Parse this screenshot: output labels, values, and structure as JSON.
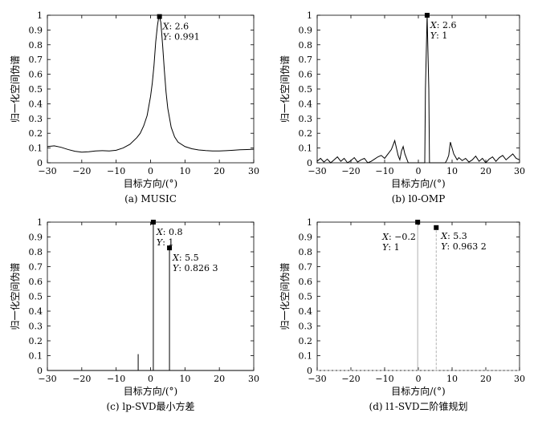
{
  "colors": {
    "line": "#000000",
    "dashed": "#b0b0b0",
    "background": "#ffffff"
  },
  "chart_data": [
    {
      "type": "line",
      "caption": "(a) MUSIC",
      "xlabel": "目标方向/(°)",
      "ylabel": "归一化空间伪谱",
      "xlim": [
        -30,
        30
      ],
      "ylim": [
        0,
        1
      ],
      "xticks": [
        -30,
        -20,
        -10,
        0,
        10,
        20,
        30
      ],
      "yticks": [
        0,
        0.1,
        0.2,
        0.3,
        0.4,
        0.5,
        0.6,
        0.7,
        0.8,
        0.9,
        1
      ],
      "series": [
        {
          "style": "solid",
          "x": [
            -30,
            -28,
            -26,
            -24,
            -22,
            -20,
            -18,
            -16,
            -14,
            -12,
            -10,
            -8,
            -6,
            -4,
            -3,
            -2,
            -1,
            0,
            0.5,
            1,
            1.5,
            2,
            2.3,
            2.6,
            3,
            3.5,
            4,
            4.5,
            5,
            6,
            7,
            8,
            10,
            12,
            14,
            16,
            18,
            20,
            22,
            24,
            26,
            28,
            30
          ],
          "y": [
            0.11,
            0.115,
            0.105,
            0.09,
            0.078,
            0.072,
            0.075,
            0.08,
            0.082,
            0.08,
            0.085,
            0.1,
            0.125,
            0.17,
            0.2,
            0.25,
            0.32,
            0.45,
            0.54,
            0.66,
            0.82,
            0.93,
            0.975,
            0.991,
            0.95,
            0.8,
            0.63,
            0.48,
            0.37,
            0.24,
            0.175,
            0.14,
            0.11,
            0.095,
            0.087,
            0.083,
            0.08,
            0.08,
            0.082,
            0.085,
            0.088,
            0.09,
            0.092
          ]
        }
      ],
      "markers": [
        {
          "x": 2.6,
          "y": 0.991,
          "label_x": "2.6",
          "label_y": "0.991"
        }
      ]
    },
    {
      "type": "line",
      "caption": "(b) l0-OMP",
      "xlabel": "目标方向/(°)",
      "ylabel": "归一化空间伪谱",
      "xlim": [
        -30,
        30
      ],
      "ylim": [
        0,
        1
      ],
      "xticks": [
        -30,
        -20,
        -10,
        0,
        10,
        20,
        30
      ],
      "yticks": [
        0,
        0.1,
        0.2,
        0.3,
        0.4,
        0.5,
        0.6,
        0.7,
        0.8,
        0.9,
        1
      ],
      "series": [
        {
          "style": "solid",
          "x": [
            -30,
            -29,
            -28,
            -27,
            -26,
            -25,
            -24,
            -23,
            -22,
            -21,
            -20,
            -19,
            -18,
            -17,
            -16,
            -15,
            -14,
            -13,
            -12,
            -11,
            -10,
            -9,
            -8,
            -7.5,
            -7,
            -6.5,
            -6,
            -5.5,
            -5,
            -4.5,
            -4,
            -3,
            -2,
            -1,
            0,
            1,
            1.5,
            1.9,
            2.1,
            2.6,
            3.1,
            3.3,
            3.7,
            4,
            5,
            6,
            7,
            8,
            8.5,
            9,
            9.5,
            10,
            10.5,
            11,
            11.5,
            12,
            13,
            14,
            15,
            16,
            17,
            18,
            19,
            20,
            21,
            22,
            23,
            24,
            25,
            26,
            27,
            28,
            29,
            30
          ],
          "y": [
            0.01,
            0.03,
            0.005,
            0.025,
            0.0,
            0.02,
            0.04,
            0.01,
            0.03,
            0.0,
            0.015,
            0.035,
            0.005,
            0.02,
            0.03,
            0.0,
            0.01,
            0.025,
            0.04,
            0.05,
            0.03,
            0.06,
            0.09,
            0.12,
            0.15,
            0.1,
            0.05,
            0.02,
            0.08,
            0.11,
            0.06,
            0.0,
            0.0,
            0.0,
            0.0,
            0.0,
            0.0,
            0.0,
            0.5,
            1.0,
            0.5,
            0.0,
            0.0,
            0.0,
            0.0,
            0.0,
            0.0,
            0.0,
            0.02,
            0.05,
            0.14,
            0.1,
            0.06,
            0.04,
            0.02,
            0.035,
            0.015,
            0.03,
            0.005,
            0.02,
            0.045,
            0.01,
            0.03,
            0.0,
            0.025,
            0.04,
            0.01,
            0.035,
            0.05,
            0.02,
            0.04,
            0.06,
            0.03,
            0.02
          ]
        }
      ],
      "markers": [
        {
          "x": 2.6,
          "y": 1,
          "label_x": "2.6",
          "label_y": "1"
        }
      ]
    },
    {
      "type": "line",
      "caption": "(c) lp-SVD最小方差",
      "xlabel": "目标方向/(°)",
      "ylabel": "归一化空间伪谱",
      "xlim": [
        -30,
        30
      ],
      "ylim": [
        0,
        1
      ],
      "xticks": [
        -30,
        -20,
        -10,
        0,
        10,
        20,
        30
      ],
      "yticks": [
        0,
        0.1,
        0.2,
        0.3,
        0.4,
        0.5,
        0.6,
        0.7,
        0.8,
        0.9,
        1
      ],
      "series": [
        {
          "style": "solid",
          "x": [
            -30,
            -3.6,
            -3.6,
            -3.6,
            0.8,
            0.8,
            0.8,
            5.5,
            5.5,
            5.5,
            30
          ],
          "y": [
            0,
            0,
            0.11,
            0,
            0,
            1,
            0,
            0,
            0.8263,
            0,
            0
          ]
        }
      ],
      "markers": [
        {
          "x": 0.8,
          "y": 1,
          "label_x": "0.8",
          "label_y": "1"
        },
        {
          "x": 5.5,
          "y": 0.8263,
          "label_x": "5.5",
          "label_y": "0.826 3"
        }
      ]
    },
    {
      "type": "line",
      "caption": "(d) l1-SVD二阶锥规划",
      "xlabel": "目标方向/(°)",
      "ylabel": "归一化空间伪谱",
      "xlim": [
        -30,
        30
      ],
      "ylim": [
        0,
        1
      ],
      "xticks": [
        -30,
        -20,
        -10,
        0,
        10,
        20,
        30
      ],
      "yticks": [
        0,
        0.1,
        0.2,
        0.3,
        0.4,
        0.5,
        0.6,
        0.7,
        0.8,
        0.9,
        1
      ],
      "series": [
        {
          "style": "dashed",
          "x": [
            -30,
            -0.2,
            -0.2,
            -0.2,
            5.3,
            5.3,
            5.3,
            30
          ],
          "y": [
            0,
            0,
            1,
            0,
            0,
            0.9632,
            0,
            0
          ]
        }
      ],
      "markers": [
        {
          "x": -0.2,
          "y": 1,
          "label_x": "−0.2",
          "label_y": "1"
        },
        {
          "x": 5.3,
          "y": 0.9632,
          "label_x": "5.3",
          "label_y": "0.963 2"
        }
      ]
    }
  ]
}
